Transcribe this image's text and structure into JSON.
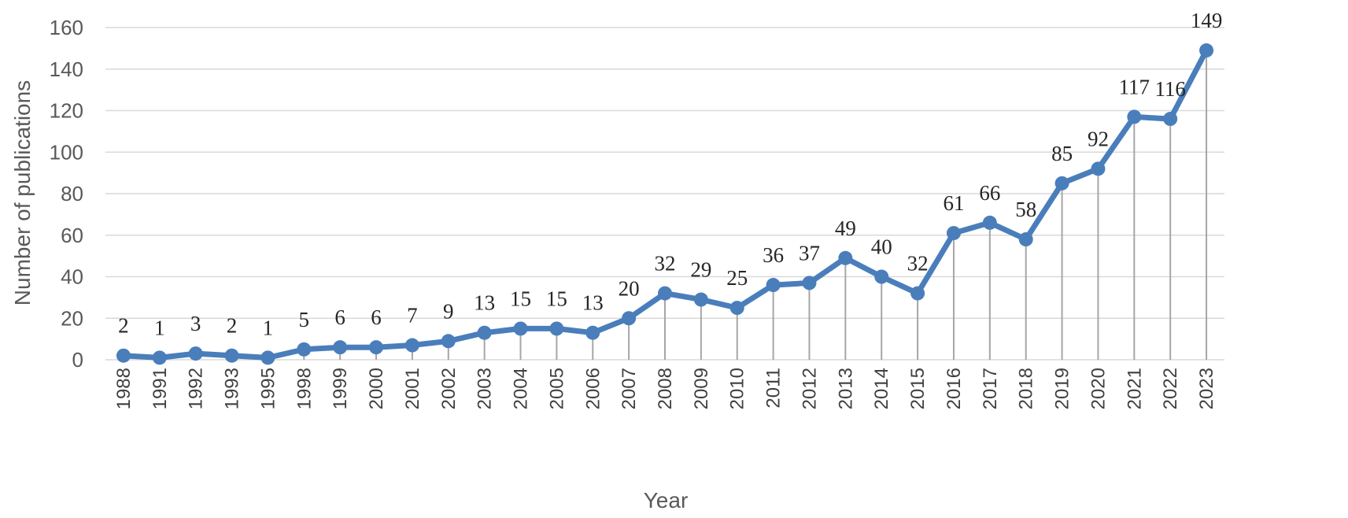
{
  "chart_data": {
    "type": "line",
    "title": "",
    "xlabel": "Year",
    "ylabel": "Number of publications",
    "ylim": [
      0,
      160
    ],
    "yticks": [
      0,
      20,
      40,
      60,
      80,
      100,
      120,
      140,
      160
    ],
    "grid": true,
    "drop_lines": true,
    "legend": "none",
    "categories": [
      "1988",
      "1991",
      "1992",
      "1993",
      "1995",
      "1998",
      "1999",
      "2000",
      "2001",
      "2002",
      "2003",
      "2004",
      "2005",
      "2006",
      "2007",
      "2008",
      "2009",
      "2010",
      "2011",
      "2012",
      "2013",
      "2014",
      "2015",
      "2016",
      "2017",
      "2018",
      "2019",
      "2020",
      "2021",
      "2022",
      "2023"
    ],
    "values": [
      2,
      1,
      3,
      2,
      1,
      5,
      6,
      6,
      7,
      9,
      13,
      15,
      15,
      13,
      20,
      32,
      29,
      25,
      36,
      37,
      49,
      40,
      32,
      61,
      66,
      58,
      85,
      92,
      117,
      116,
      149
    ],
    "colors": {
      "series": "#4a7ebb",
      "grid": "#d9d9d9",
      "drop": "#a6a6a6"
    }
  }
}
